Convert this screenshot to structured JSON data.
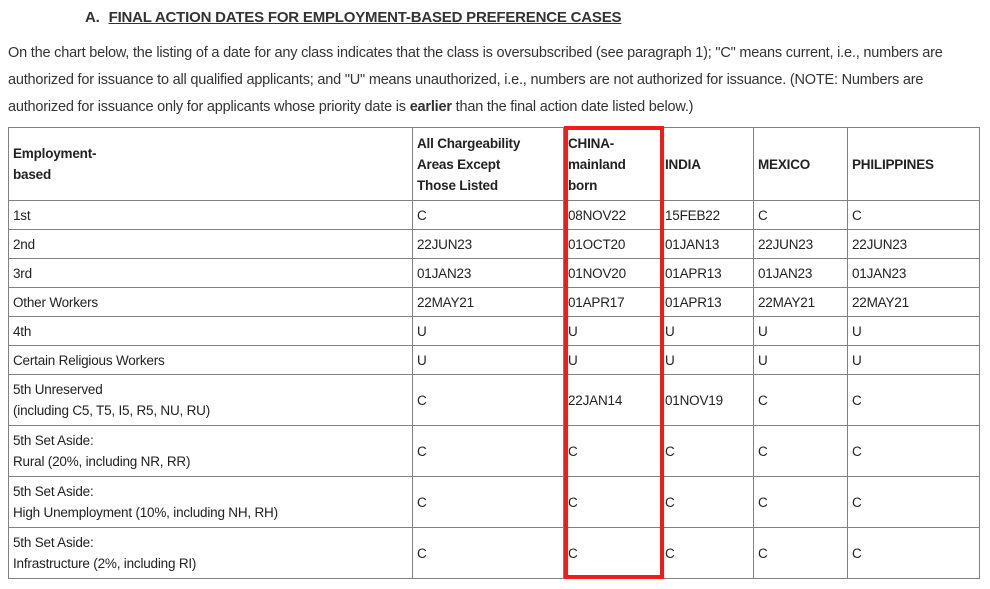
{
  "heading": {
    "prefix": "A.",
    "title": "FINAL ACTION DATES FOR EMPLOYMENT-BASED PREFERENCE CASES"
  },
  "intro": {
    "line1": "On the chart below, the listing of a date for any class indicates that the class is oversubscribed (see paragraph 1); \"C\" means current, i.e., numbers are",
    "line2": "authorized for issuance to all qualified applicants; and \"U\" means unauthorized, i.e., numbers are not authorized for issuance. (NOTE: Numbers are",
    "line3_before": "authorized for issuance only for applicants whose priority date is ",
    "line3_bold": "earlier",
    "line3_after": " than the final action date listed below.)"
  },
  "table": {
    "columns": [
      "Employment-\nbased",
      "All Chargeability\nAreas Except\nThose Listed",
      "CHINA-\nmainland\nborn",
      "INDIA",
      "MEXICO",
      "PHILIPPINES"
    ],
    "rows": [
      {
        "label": "1st",
        "values": [
          "C",
          "08NOV22",
          "15FEB22",
          "C",
          "C"
        ]
      },
      {
        "label": "2nd",
        "values": [
          "22JUN23",
          "01OCT20",
          "01JAN13",
          "22JUN23",
          "22JUN23"
        ]
      },
      {
        "label": "3rd",
        "values": [
          "01JAN23",
          "01NOV20",
          "01APR13",
          "01JAN23",
          "01JAN23"
        ]
      },
      {
        "label": "Other Workers",
        "values": [
          "22MAY21",
          "01APR17",
          "01APR13",
          "22MAY21",
          "22MAY21"
        ]
      },
      {
        "label": "4th",
        "values": [
          "U",
          "U",
          "U",
          "U",
          "U"
        ]
      },
      {
        "label": "Certain Religious Workers",
        "values": [
          "U",
          "U",
          "U",
          "U",
          "U"
        ]
      },
      {
        "label": "5th Unreserved\n(including C5, T5, I5, R5, NU, RU)",
        "values": [
          "C",
          "22JAN14",
          "01NOV19",
          "C",
          "C"
        ]
      },
      {
        "label": "5th Set Aside:\nRural (20%, including NR, RR)",
        "values": [
          "C",
          "C",
          "C",
          "C",
          "C"
        ]
      },
      {
        "label": "5th Set Aside:\nHigh Unemployment (10%, including NH, RH)",
        "values": [
          "C",
          "C",
          "C",
          "C",
          "C"
        ]
      },
      {
        "label": "5th Set Aside:\nInfrastructure (2%, including RI)",
        "values": [
          "C",
          "C",
          "C",
          "C",
          "C"
        ]
      }
    ]
  },
  "annotation": {
    "highlighted_column": "CHINA-mainland born",
    "box_color": "#f21b1b"
  },
  "colors": {
    "table_border": "#808080",
    "text": "#333333",
    "background": "#ffffff"
  }
}
